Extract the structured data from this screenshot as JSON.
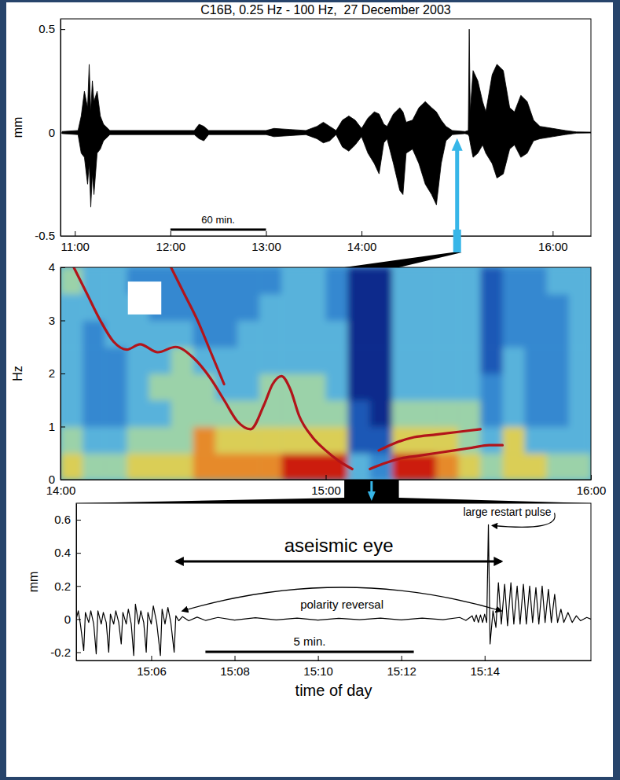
{
  "chart_data": [
    {
      "type": "area",
      "title": "C16B, 0.25 Hz - 100 Hz,  27 December 2003",
      "y_label": "mm",
      "x": [
        652,
        662,
        664,
        666,
        668,
        669,
        670,
        671,
        672,
        674,
        676,
        678,
        682,
        735,
        738,
        741,
        744,
        780,
        785,
        795,
        805,
        812,
        816,
        820,
        824,
        828,
        832,
        836,
        840,
        844,
        848,
        851,
        854,
        856,
        860,
        864,
        866,
        868,
        872,
        876,
        880,
        884,
        887,
        890,
        893,
        897,
        905,
        907,
        907.6,
        908.2,
        910,
        913,
        916,
        918,
        922,
        925,
        929,
        933,
        936,
        940,
        944,
        948,
        952,
        960,
        968,
        975,
        984
      ],
      "high": [
        0.005,
        0.01,
        0.08,
        0.2,
        0.12,
        0.33,
        0.1,
        0.25,
        0.15,
        0.2,
        0.08,
        0.04,
        0.01,
        0.01,
        0.04,
        0.03,
        0.01,
        0.01,
        0.02,
        0.015,
        0.01,
        0.03,
        0.05,
        0.03,
        0.01,
        0.06,
        0.08,
        0.06,
        0.02,
        0.07,
        0.1,
        0.09,
        0.04,
        0.03,
        0.09,
        0.12,
        0.1,
        0.05,
        0.06,
        0.12,
        0.15,
        0.12,
        0.1,
        0.06,
        0.03,
        0.01,
        0.005,
        0.01,
        0.5,
        0.1,
        0.3,
        0.25,
        0.15,
        0.1,
        0.28,
        0.33,
        0.3,
        0.12,
        0.1,
        0.18,
        0.15,
        0.06,
        0.03,
        0.02,
        0.01,
        0.003,
        0.002
      ],
      "low": [
        -0.005,
        -0.01,
        -0.1,
        -0.12,
        -0.25,
        -0.15,
        -0.36,
        -0.2,
        -0.3,
        -0.1,
        -0.08,
        -0.04,
        -0.01,
        -0.01,
        -0.03,
        -0.04,
        -0.01,
        -0.01,
        -0.02,
        -0.015,
        -0.01,
        -0.03,
        -0.05,
        -0.04,
        -0.01,
        -0.07,
        -0.09,
        -0.06,
        -0.02,
        -0.1,
        -0.15,
        -0.2,
        -0.05,
        -0.03,
        -0.15,
        -0.28,
        -0.3,
        -0.1,
        -0.08,
        -0.15,
        -0.25,
        -0.3,
        -0.35,
        -0.15,
        -0.04,
        -0.01,
        -0.005,
        -0.01,
        -0.02,
        -0.05,
        -0.12,
        -0.1,
        -0.06,
        -0.1,
        -0.15,
        -0.22,
        -0.2,
        -0.08,
        -0.06,
        -0.12,
        -0.1,
        -0.04,
        -0.03,
        -0.02,
        -0.01,
        -0.003,
        -0.002
      ],
      "color": "#000000",
      "xlim": [
        651,
        984
      ],
      "xticks": [
        {
          "value": 660,
          "label": "11:00"
        },
        {
          "value": 720,
          "label": "12:00"
        },
        {
          "value": 780,
          "label": "13:00"
        },
        {
          "value": 840,
          "label": "14:00"
        },
        {
          "value": 960,
          "label": "16:00"
        }
      ],
      "ylim": [
        -0.5,
        0.55
      ],
      "yticks": [
        -0.5,
        0,
        0.5
      ],
      "scale_bar": {
        "label": "60 min.",
        "x": [
          720,
          780
        ]
      },
      "highlight": 900
    },
    {
      "type": "heatmap",
      "y_label": "Hz",
      "xlim": [
        840,
        960
      ],
      "xticks": [
        {
          "value": 840,
          "label": "14:00"
        },
        {
          "value": 900,
          "label": "15:00"
        },
        {
          "value": 960,
          "label": "16:00"
        }
      ],
      "ylim": [
        0,
        4
      ],
      "yticks": [
        0,
        1,
        2,
        3,
        4
      ],
      "cells": [
        [
          6,
          5,
          5,
          6,
          6,
          6,
          7,
          7,
          7,
          7,
          8,
          8,
          8,
          4,
          3,
          8,
          8,
          7,
          6,
          5,
          6,
          6,
          5,
          5
        ],
        [
          5,
          4,
          4,
          5,
          5,
          5,
          7,
          6,
          6,
          6,
          6,
          6,
          6,
          2,
          2,
          6,
          6,
          6,
          5,
          4,
          6,
          4,
          4,
          4
        ],
        [
          4,
          3,
          3,
          4,
          4,
          5,
          5,
          5,
          5,
          5,
          5,
          5,
          5,
          2,
          1,
          5,
          5,
          5,
          5,
          3,
          4,
          3,
          3,
          4
        ],
        [
          4,
          3,
          3,
          4,
          5,
          5,
          5,
          4,
          4,
          5,
          5,
          5,
          4,
          1,
          1,
          4,
          4,
          4,
          4,
          3,
          4,
          3,
          3,
          4
        ],
        [
          4,
          3,
          3,
          4,
          4,
          5,
          4,
          4,
          4,
          4,
          4,
          4,
          4,
          1,
          1,
          4,
          4,
          4,
          4,
          2,
          4,
          3,
          3,
          4
        ],
        [
          4,
          3,
          4,
          4,
          4,
          4,
          3,
          3,
          4,
          4,
          4,
          4,
          4,
          1,
          1,
          4,
          4,
          4,
          4,
          2,
          3,
          3,
          3,
          4
        ],
        [
          4,
          4,
          4,
          4,
          3,
          3,
          3,
          3,
          3,
          4,
          4,
          4,
          3,
          1,
          1,
          4,
          4,
          4,
          4,
          2,
          3,
          3,
          3,
          4
        ],
        [
          5,
          4,
          4,
          3,
          3,
          3,
          3,
          3,
          3,
          3,
          4,
          4,
          3,
          1,
          1,
          4,
          4,
          4,
          4,
          2,
          3,
          3,
          4,
          4
        ]
      ],
      "series": [
        {
          "x": [
            843,
            846,
            849,
            852,
            855,
            858,
            862,
            866,
            870,
            874,
            877,
            880,
            883,
            886,
            888,
            890,
            892,
            894,
            897,
            900,
            903,
            906
          ],
          "values": [
            4.0,
            3.5,
            3.0,
            2.6,
            2.45,
            2.55,
            2.4,
            2.5,
            2.3,
            1.9,
            1.5,
            1.1,
            0.95,
            1.4,
            1.8,
            1.95,
            1.7,
            1.2,
            0.8,
            0.55,
            0.35,
            0.2
          ],
          "color": "#b2141a"
        },
        {
          "x": [
            865,
            868,
            871,
            874,
            877
          ],
          "values": [
            4,
            3.5,
            3,
            2.4,
            1.8
          ],
          "color": "#b2141a"
        },
        {
          "x": [
            910,
            913,
            917,
            921,
            925,
            929,
            933,
            937,
            940
          ],
          "values": [
            0.2,
            0.3,
            0.4,
            0.45,
            0.5,
            0.55,
            0.6,
            0.65,
            0.65
          ],
          "color": "#b2141a"
        },
        {
          "x": [
            912,
            916,
            920,
            925,
            930,
            935
          ],
          "values": [
            0.55,
            0.7,
            0.8,
            0.85,
            0.9,
            0.95
          ],
          "color": "#b2141a"
        }
      ]
    },
    {
      "type": "line",
      "x_label": "time of day",
      "y_label": "mm",
      "x": [
        904.2,
        904.25,
        904.3,
        904.38,
        904.42,
        904.5,
        904.55,
        904.62,
        904.68,
        904.72,
        904.8,
        904.85,
        904.92,
        904.98,
        905.02,
        905.1,
        905.15,
        905.22,
        905.28,
        905.32,
        905.4,
        905.45,
        905.52,
        905.58,
        905.62,
        905.7,
        905.75,
        905.82,
        905.88,
        905.92,
        906,
        906.05,
        906.13,
        906.22,
        906.26,
        906.33,
        906.4,
        906.47,
        906.55,
        906.59,
        906.66,
        906.75,
        906.9,
        907.1,
        907.3,
        907.6,
        908,
        908.5,
        909,
        909.5,
        910,
        910.5,
        911,
        911.5,
        912,
        912.5,
        913,
        913.4,
        913.55,
        913.7,
        913.75,
        913.8,
        913.85,
        913.9,
        913.95,
        914,
        914.05,
        914.09,
        914.13,
        914.2,
        914.27,
        914.33,
        914.4,
        914.48,
        914.55,
        914.63,
        914.7,
        914.78,
        914.85,
        914.93,
        915,
        915.08,
        915.15,
        915.23,
        915.3,
        915.38,
        915.45,
        915.53,
        915.6,
        915.68,
        915.75,
        915.83,
        915.9,
        916,
        916.1,
        916.2,
        916.3,
        916.45,
        916.55
      ],
      "values": [
        0,
        0.05,
        -0.03,
        -0.19,
        0.04,
        -0.02,
        0.05,
        -0.03,
        -0.21,
        0.05,
        -0.03,
        0.04,
        -0.02,
        -0.2,
        0.03,
        -0.03,
        0.05,
        -0.02,
        -0.15,
        0.04,
        -0.03,
        0.06,
        -0.03,
        -0.22,
        0.09,
        -0.03,
        0.05,
        -0.02,
        -0.2,
        0.04,
        -0.03,
        0.08,
        -0.02,
        -0.22,
        0.06,
        -0.03,
        0.07,
        -0.02,
        -0.2,
        0.02,
        -0.01,
        0.015,
        -0.01,
        0.012,
        -0.008,
        0.01,
        -0.006,
        0.008,
        -0.005,
        0.006,
        -0.006,
        0.005,
        -0.004,
        0.006,
        -0.005,
        0.006,
        -0.004,
        0.01,
        -0.008,
        0.02,
        -0.015,
        0.025,
        -0.02,
        0.025,
        -0.02,
        0.03,
        -0.02,
        0.57,
        -0.15,
        0.05,
        -0.05,
        0.22,
        -0.03,
        0.21,
        -0.04,
        0.22,
        -0.03,
        0.2,
        -0.03,
        0.21,
        -0.03,
        0.2,
        -0.02,
        0.19,
        -0.03,
        0.2,
        -0.02,
        0.18,
        -0.02,
        0.15,
        -0.02,
        0.06,
        -0.02,
        0.04,
        -0.02,
        0.02,
        -0.01,
        0.01,
        0
      ],
      "color": "#000000",
      "xlim": [
        904.2,
        916.55
      ],
      "xticks": [
        {
          "value": 906,
          "label": "15:06"
        },
        {
          "value": 908,
          "label": "15:08"
        },
        {
          "value": 910,
          "label": "15:10"
        },
        {
          "value": 912,
          "label": "15:12"
        },
        {
          "value": 914,
          "label": "15:14"
        }
      ],
      "ylim": [
        -0.25,
        0.7
      ],
      "yticks": [
        -0.2,
        0,
        0.2,
        0.4,
        0.6
      ],
      "scale_bar": {
        "label": "5 min.",
        "x": [
          907.3,
          912.3
        ]
      },
      "annotations": [
        {
          "text": "aseismic eye",
          "x": [
            906.6,
            914.4
          ]
        },
        {
          "text": "polarity reversal",
          "x": [
            906.75,
            914.4
          ]
        },
        {
          "text": "large restart pulse",
          "x": 914.09,
          "y": 0.57
        }
      ]
    }
  ]
}
